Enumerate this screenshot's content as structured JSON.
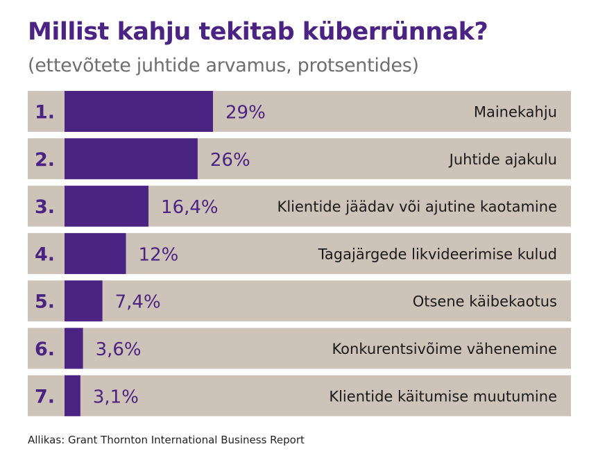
{
  "chart_data": {
    "type": "bar",
    "orientation": "horizontal",
    "title": "Millist kahju tekitab küberrünnak?",
    "subtitle": "(ettevõtete juhtide arvamus, protsentides)",
    "xlabel": "",
    "ylabel": "",
    "ranks": [
      "1.",
      "2.",
      "3.",
      "4.",
      "5.",
      "6.",
      "7."
    ],
    "categories": [
      "Mainekahju",
      "Juhtide ajakulu",
      "Klientide jäädav või ajutine kaotamine",
      "Tagajärgede likvideerimise kulud",
      "Otsene käibekaotus",
      "Konkurentsivõime vähenemine",
      "Klientide käitumise muutumine"
    ],
    "values": [
      29,
      26,
      16.4,
      12,
      7.4,
      3.6,
      3.1
    ],
    "value_labels": [
      "29%",
      "26%",
      "16,4%",
      "12%",
      "7,4%",
      "3,6%",
      "3,1%"
    ],
    "unit": "%",
    "grid": false,
    "legend": "none",
    "colors": {
      "bar": "#4b2382",
      "track": "#cdc3b8",
      "rank": "#4b2382",
      "value_label": "#4b2382",
      "category_label": "#1a1a1a"
    }
  },
  "source": "Allikas: Grant Thornton International Business Report"
}
